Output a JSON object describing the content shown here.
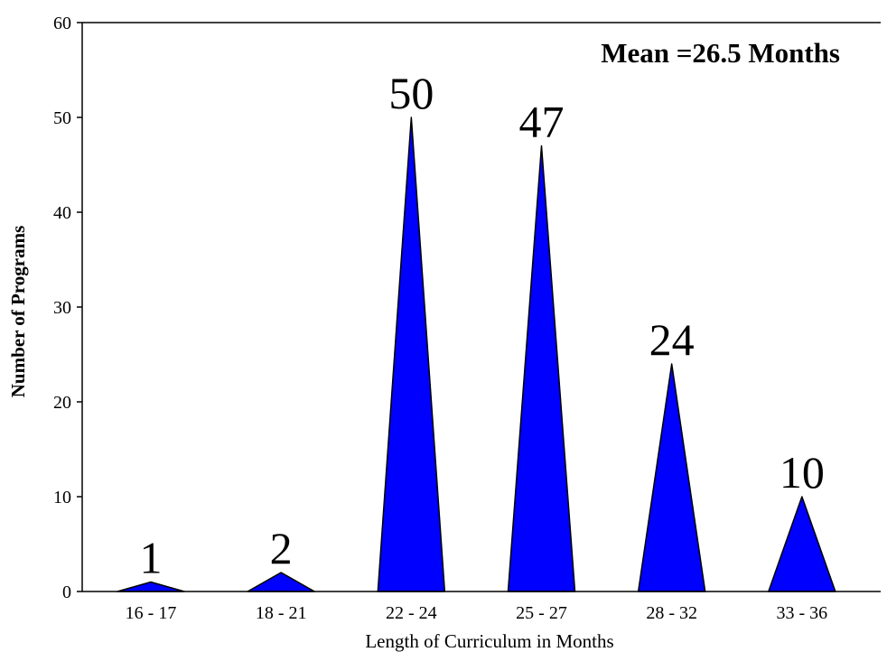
{
  "chart_data": {
    "type": "area",
    "categories": [
      "16 - 17",
      "18 - 21",
      "22 - 24",
      "25 - 27",
      "28 - 32",
      "33 - 36"
    ],
    "values": [
      1,
      2,
      50,
      47,
      24,
      10
    ],
    "data_labels": [
      "1",
      "2",
      "50",
      "47",
      "24",
      "10"
    ],
    "xlabel": "Length of Curriculum in Months",
    "ylabel": "Number of Programs",
    "yticks": [
      0,
      10,
      20,
      30,
      40,
      50,
      60
    ],
    "ylim": [
      0,
      60
    ],
    "annotation": "Mean =26.5 Months",
    "grid": false,
    "fill_color": "#0000ff",
    "stroke_color": "#000000"
  }
}
